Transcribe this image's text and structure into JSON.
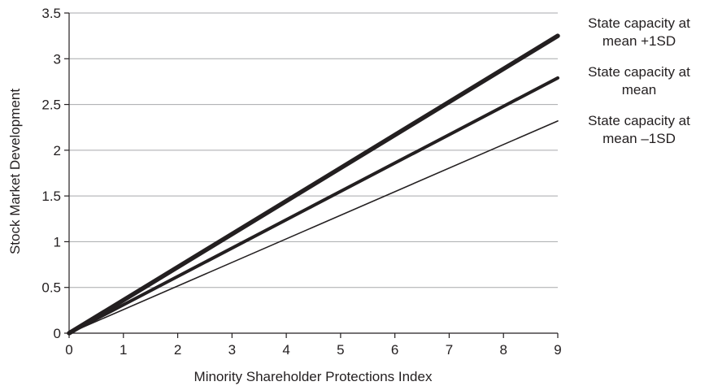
{
  "chart_data": {
    "type": "line",
    "xlabel": "Minority Shareholder Protections Index",
    "ylabel": "Stock Market Development",
    "xlim": [
      0,
      9
    ],
    "ylim": [
      0,
      3.5
    ],
    "x_ticks": [
      "0",
      "1",
      "2",
      "3",
      "4",
      "5",
      "6",
      "7",
      "8",
      "9"
    ],
    "y_ticks": [
      "0",
      "0.5",
      "1",
      "1.5",
      "2",
      "2.5",
      "3",
      "3.5"
    ],
    "grid": "horizontal",
    "series": [
      {
        "name": "State capacity at mean +1SD",
        "label_lines": [
          "State capacity at",
          "mean +1SD"
        ],
        "x": [
          0,
          9
        ],
        "values": [
          0,
          3.25
        ],
        "weight": "heavy"
      },
      {
        "name": "State capacity at mean",
        "label_lines": [
          "State capacity at",
          "mean"
        ],
        "x": [
          0,
          9
        ],
        "values": [
          0,
          2.79
        ],
        "weight": "medium"
      },
      {
        "name": "State capacity at mean –1SD",
        "label_lines": [
          "State capacity at",
          "mean –1SD"
        ],
        "x": [
          0,
          9
        ],
        "values": [
          0,
          2.32
        ],
        "weight": "light"
      }
    ],
    "colors": {
      "line": "#231f20",
      "grid": "#a7a9ac",
      "axis": "#231f20"
    }
  }
}
